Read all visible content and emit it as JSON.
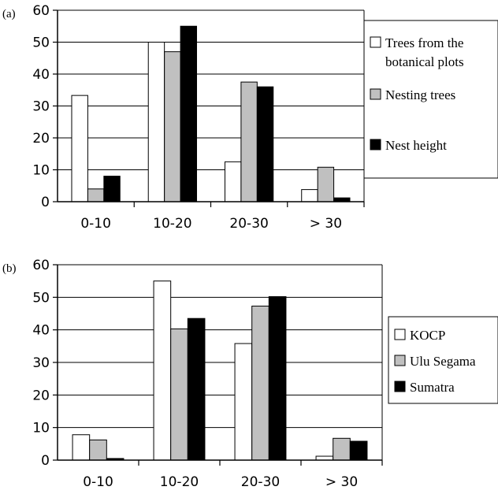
{
  "chart_data": [
    {
      "type": "bar",
      "panel_label": "(a)",
      "categories": [
        "0-10",
        "10-20",
        "20-30",
        "> 30"
      ],
      "series": [
        {
          "name": "Trees from the botanical plots",
          "values": [
            33.3,
            50,
            12.5,
            3.8
          ]
        },
        {
          "name": "Nesting trees",
          "values": [
            4,
            47,
            37.5,
            10.8
          ]
        },
        {
          "name": "Nest height",
          "values": [
            8,
            55,
            36,
            1.2
          ]
        }
      ],
      "legend_lines": [
        [
          "Trees from the",
          "botanical plots"
        ],
        [
          "Nesting trees"
        ],
        [
          "Nest height"
        ]
      ],
      "yticks": [
        "0",
        "10",
        "20",
        "30",
        "40",
        "50",
        "60"
      ],
      "ylim": [
        0,
        60
      ],
      "grid": true,
      "legend_position": "right"
    },
    {
      "type": "bar",
      "panel_label": "(b)",
      "categories": [
        "0-10",
        "10-20",
        "20-30",
        "> 30"
      ],
      "series": [
        {
          "name": "KOCP",
          "values": [
            7.8,
            55,
            35.8,
            1.2
          ]
        },
        {
          "name": "Ulu Segama",
          "values": [
            6.2,
            40.3,
            47.3,
            6.7
          ]
        },
        {
          "name": "Sumatra",
          "values": [
            0.5,
            43.5,
            50.2,
            5.8
          ]
        }
      ],
      "legend_lines": [
        [
          "KOCP"
        ],
        [
          "Ulu Segama"
        ],
        [
          "Sumatra"
        ]
      ],
      "yticks": [
        "0",
        "10",
        "20",
        "30",
        "40",
        "50",
        "60"
      ],
      "ylim": [
        0,
        60
      ],
      "grid": true,
      "legend_position": "right"
    }
  ],
  "colors": {
    "series": [
      "#ffffff",
      "#c0c0c0",
      "#000000"
    ],
    "stroke": "#000000",
    "grid": "#000000"
  }
}
